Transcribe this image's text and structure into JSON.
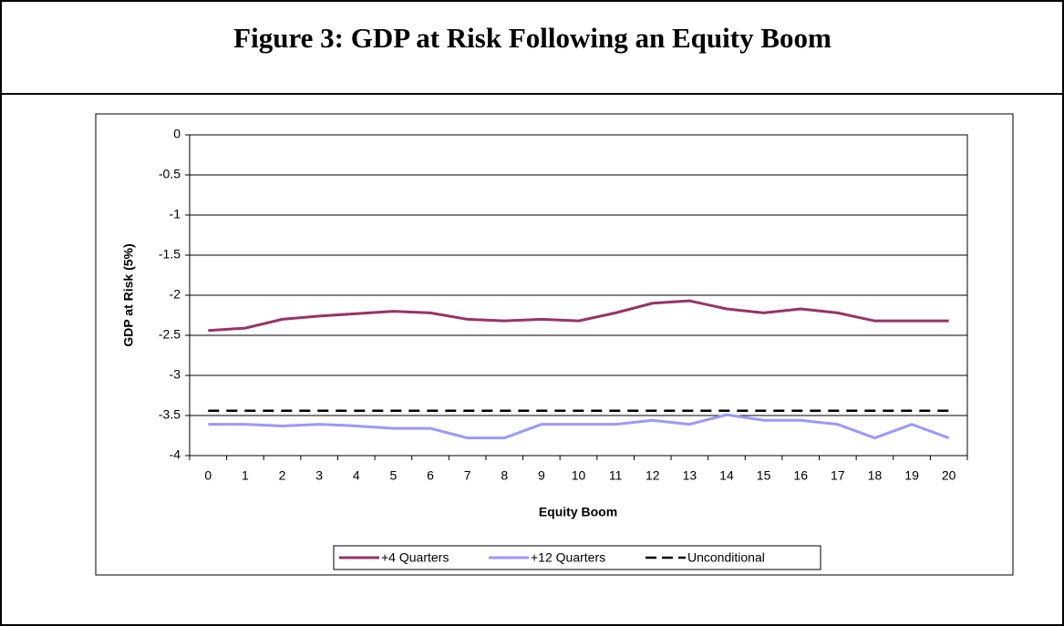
{
  "chart_data": {
    "type": "line",
    "title": "Figure 3:  GDP at Risk Following an Equity Boom",
    "x_label": "Equity Boom",
    "y_label": "GDP at Risk (5%)",
    "categories": [
      "0",
      "1",
      "2",
      "3",
      "4",
      "5",
      "6",
      "7",
      "8",
      "9",
      "10",
      "11",
      "12",
      "13",
      "14",
      "15",
      "16",
      "17",
      "18",
      "19",
      "20"
    ],
    "series": [
      {
        "name": "+4 Quarters",
        "color": "#993366",
        "dash": false,
        "values": [
          -2.44,
          -2.41,
          -2.3,
          -2.26,
          -2.23,
          -2.2,
          -2.22,
          -2.3,
          -2.32,
          -2.3,
          -2.32,
          -2.22,
          -2.1,
          -2.07,
          -2.17,
          -2.22,
          -2.17,
          -2.22,
          -2.32,
          -2.32,
          -2.32
        ]
      },
      {
        "name": "+12 Quarters",
        "color": "#9999ff",
        "dash": false,
        "values": [
          -3.61,
          -3.61,
          -3.63,
          -3.61,
          -3.63,
          -3.66,
          -3.66,
          -3.78,
          -3.78,
          -3.61,
          -3.61,
          -3.61,
          -3.56,
          -3.61,
          -3.49,
          -3.56,
          -3.56,
          -3.61,
          -3.78,
          -3.61,
          -3.78
        ]
      },
      {
        "name": "Unconditional",
        "color": "#000000",
        "dash": true,
        "values": [
          -3.44,
          -3.44,
          -3.44,
          -3.44,
          -3.44,
          -3.44,
          -3.44,
          -3.44,
          -3.44,
          -3.44,
          -3.44,
          -3.44,
          -3.44,
          -3.44,
          -3.44,
          -3.44,
          -3.44,
          -3.44,
          -3.44,
          -3.44,
          -3.44
        ]
      }
    ],
    "ylim": [
      -4,
      0
    ],
    "yticks": [
      0,
      -0.5,
      -1,
      -1.5,
      -2,
      -2.5,
      -3,
      -3.5,
      -4
    ],
    "grid": true,
    "legend": "bottom"
  }
}
